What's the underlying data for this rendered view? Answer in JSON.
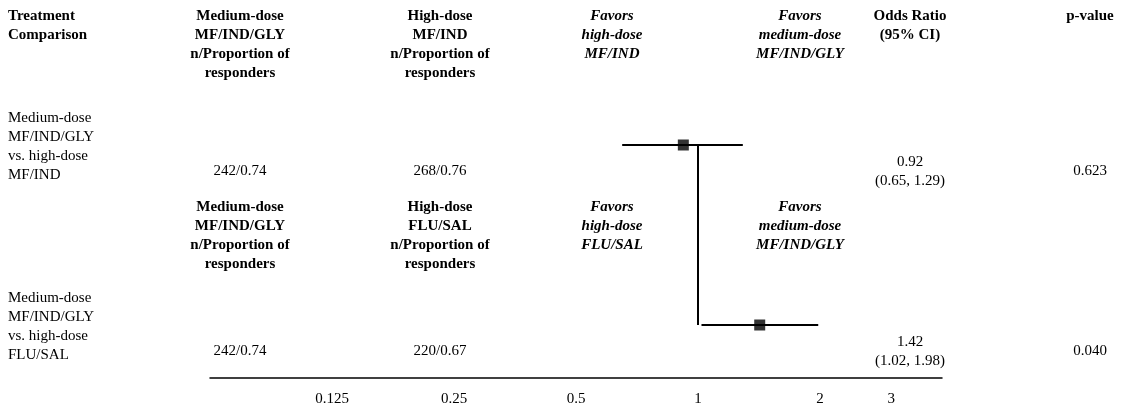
{
  "chart_data": {
    "type": "scatter",
    "orientation": "horizontal",
    "categories": [
      "Medium-dose\nMF/IND/GLY\nvs. high-dose\nMF/IND",
      "Medium-dose\nMF/IND/GLY\nvs. high-dose\nFLU/SAL"
    ],
    "values": [
      0.92,
      1.42
    ],
    "errors": [
      [
        0.65,
        1.29
      ],
      [
        1.02,
        1.98
      ]
    ],
    "color": "#000000",
    "marker": "square",
    "log": "x",
    "xlim": [
      0.0625,
      4
    ],
    "xticks": [
      0.125,
      0.25,
      0.5,
      1,
      2,
      3
    ],
    "ref_lines": [
      {
        "axis": "x",
        "value": 1
      }
    ],
    "grid": false,
    "annotations": [
      "Treatment\nComparison",
      "Medium-dose\nMF/IND/GLY\nn/Proportion of\nresponders",
      "High-dose\nMF/IND\nn/Proportion of\nresponders",
      "Favors\nhigh-dose\nMF/IND",
      "Favors\nmedium-dose\nMF/IND/GLY",
      "Odds Ratio\n(95% CI)",
      "p-value",
      "242/0.74",
      "268/0.76",
      "0.623",
      "Medium-dose\nMF/IND/GLY\nn/Proportion of\nresponders",
      "High-dose\nFLU/SAL\nn/Proportion of\nresponders",
      "Favors\nhigh-dose\nFLU/SAL",
      "Favors\nmedium-dose\nMF/IND/GLY",
      "242/0.74",
      "220/0.67",
      "0.040",
      "0.92\n(0.65, 1.29)",
      "1.42\n(1.02, 1.98)"
    ]
  }
}
